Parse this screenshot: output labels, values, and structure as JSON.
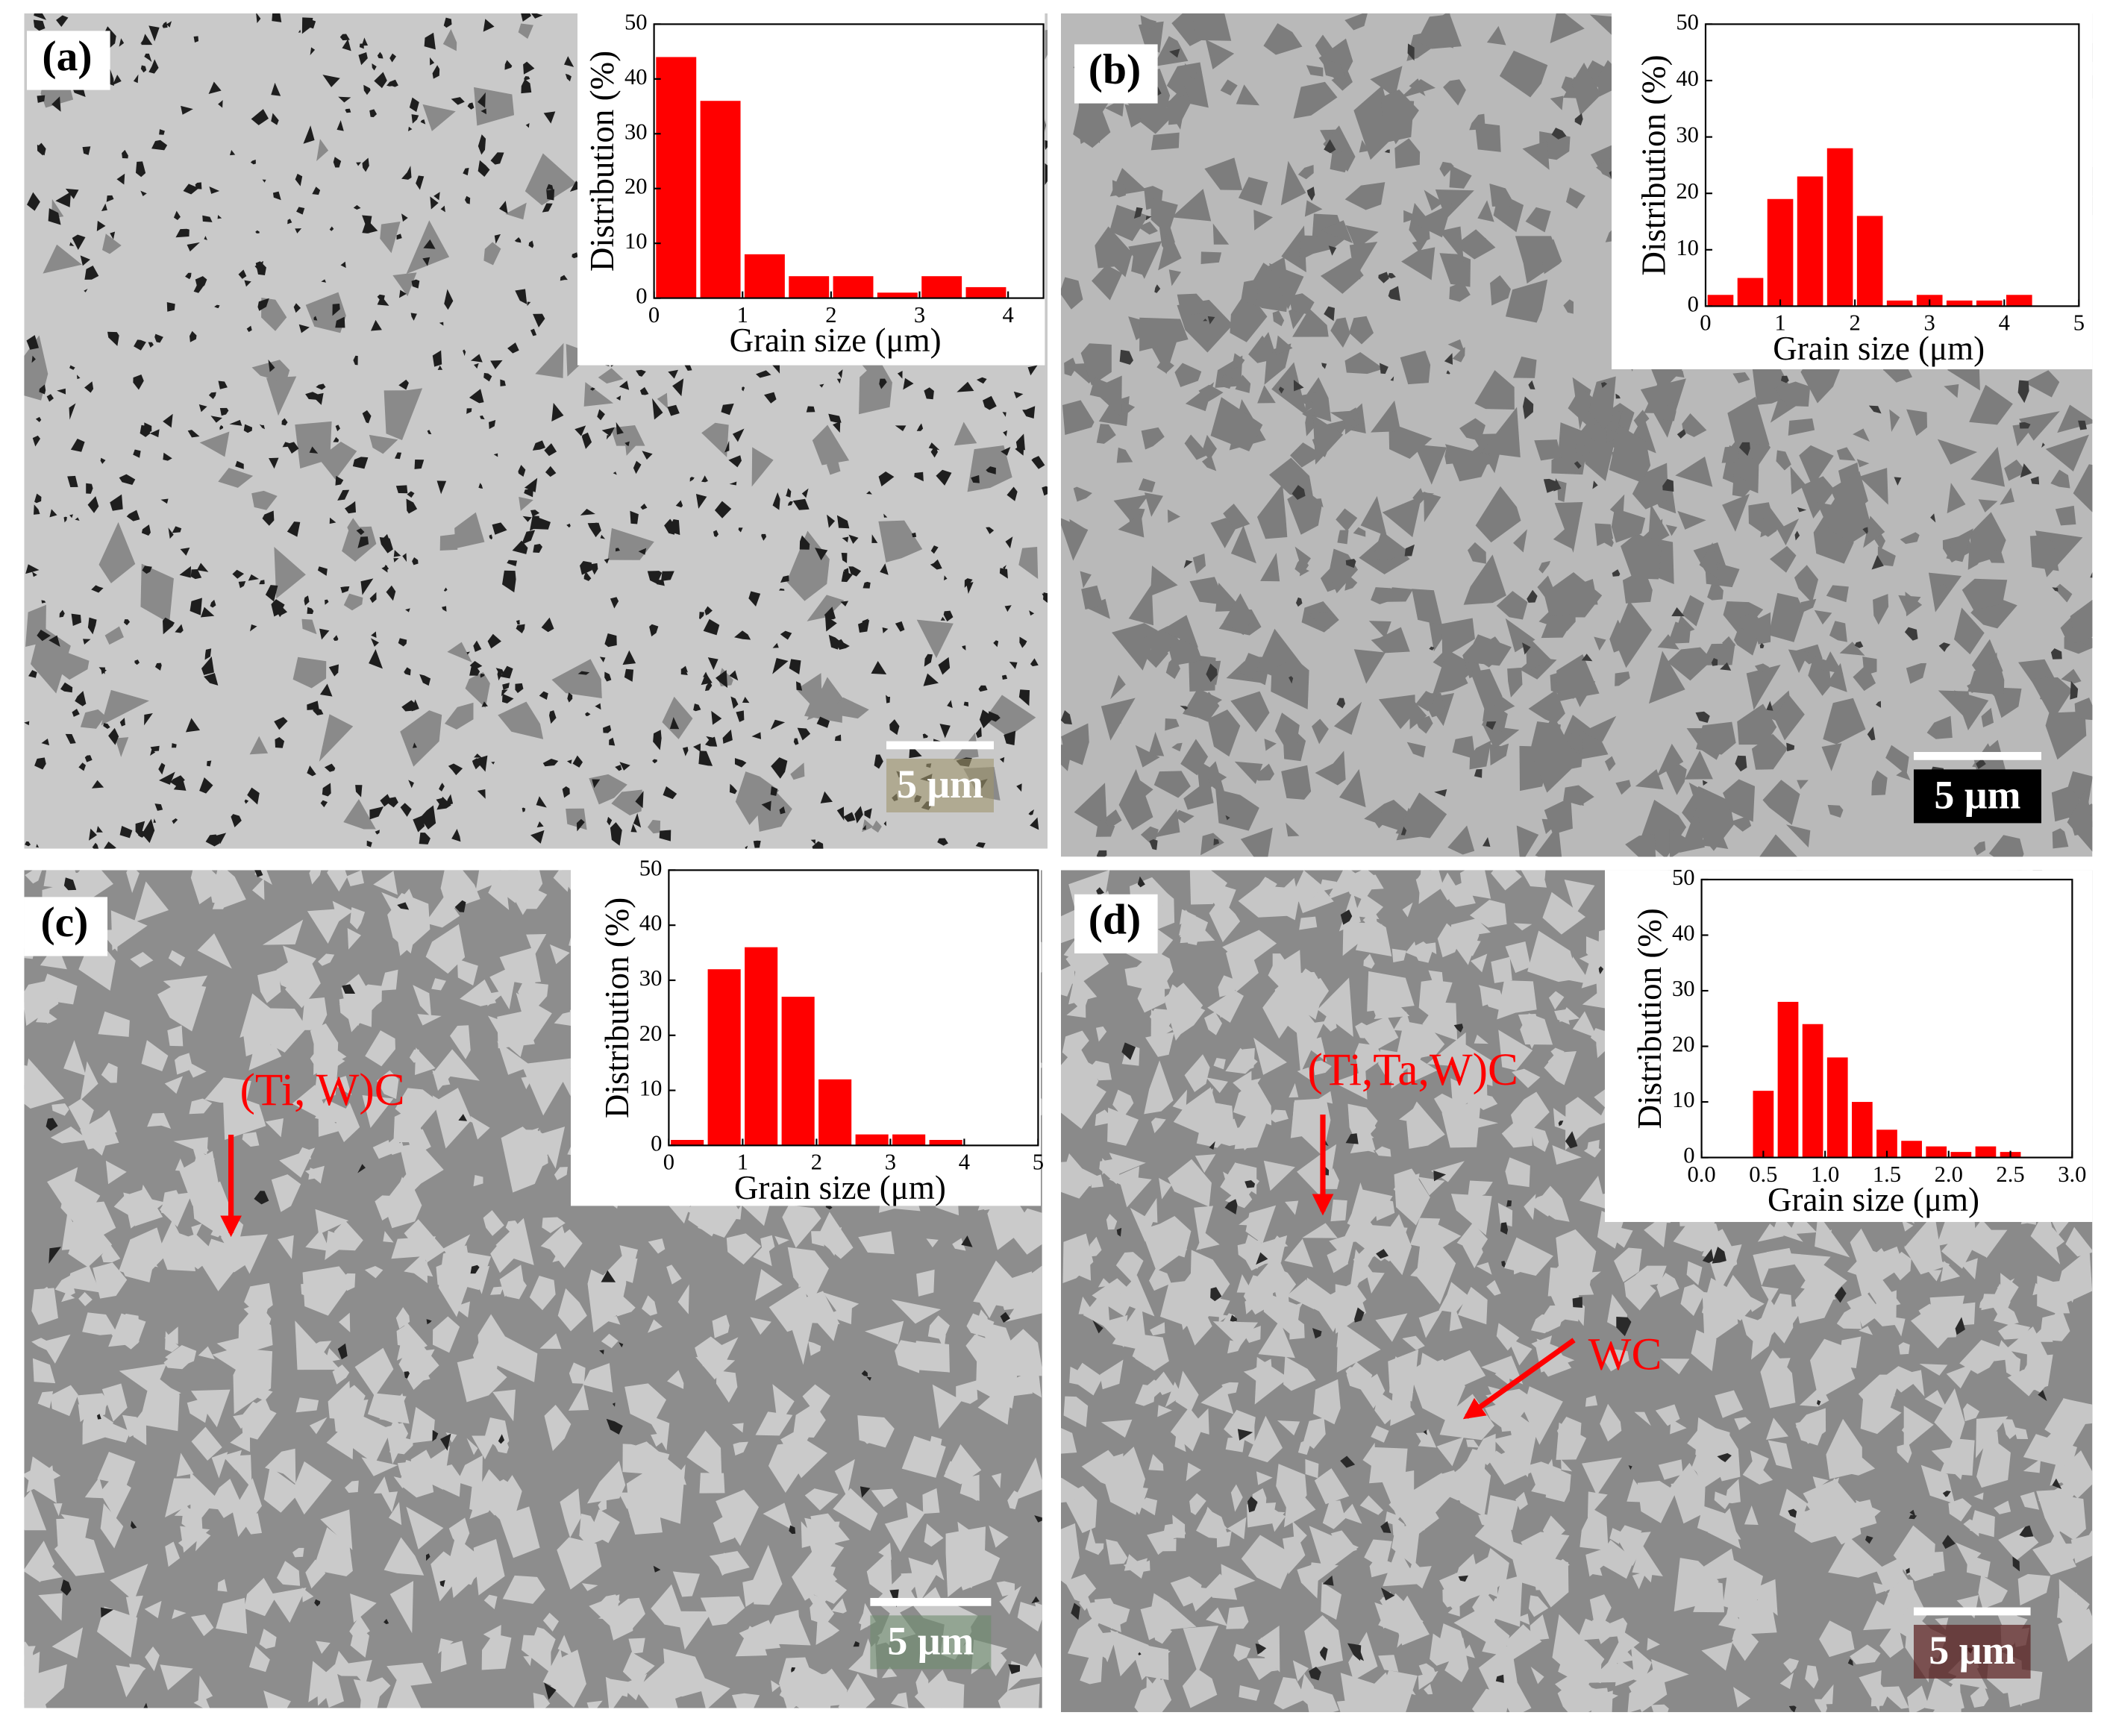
{
  "chart_data": [
    {
      "type": "histogram",
      "panel_label": "(a)",
      "scale_bar": "5 μm",
      "xlabel": "Grain size (μm)",
      "ylabel": "Distribution (%)",
      "color": "#ff0000",
      "bins": [
        0,
        0.5,
        1,
        1.5,
        2,
        2.5,
        3,
        3.5,
        4
      ],
      "values": [
        44,
        36,
        8,
        4,
        4,
        1,
        4,
        2
      ],
      "xlim": [
        0,
        4.4
      ],
      "xticks": [
        0,
        1,
        2,
        3,
        4
      ],
      "ylim": [
        0,
        50
      ],
      "yticks": [
        0,
        10,
        20,
        30,
        40,
        50
      ],
      "annotations": []
    },
    {
      "type": "histogram",
      "panel_label": "(b)",
      "scale_bar": "5 μm",
      "xlabel": "Grain size (μm)",
      "ylabel": "Distribution (%)",
      "color": "#ff0000",
      "bins": [
        0,
        0.4,
        0.8,
        1.2,
        1.6,
        2,
        2.4,
        2.8,
        3.2,
        3.6,
        4,
        4.4
      ],
      "values": [
        2,
        5,
        19,
        23,
        28,
        16,
        1,
        2,
        1,
        1,
        2
      ],
      "xlim": [
        0,
        5
      ],
      "xticks": [
        0,
        1,
        2,
        3,
        4,
        5
      ],
      "ylim": [
        0,
        50
      ],
      "yticks": [
        0,
        10,
        20,
        30,
        40,
        50
      ],
      "annotations": []
    },
    {
      "type": "histogram",
      "panel_label": "(c)",
      "scale_bar": "5 μm",
      "xlabel": "Grain size (μm)",
      "ylabel": "Distribution (%)",
      "color": "#ff0000",
      "bins": [
        0,
        0.5,
        1,
        1.5,
        2,
        2.5,
        3,
        3.5,
        4
      ],
      "values": [
        1,
        32,
        36,
        27,
        12,
        2,
        2,
        1
      ],
      "xlim": [
        0,
        5
      ],
      "xticks": [
        0,
        1,
        2,
        3,
        4,
        5
      ],
      "ylim": [
        0,
        50
      ],
      "yticks": [
        0,
        10,
        20,
        30,
        40,
        50
      ],
      "annotations": [
        "(Ti, W)C"
      ]
    },
    {
      "type": "histogram",
      "panel_label": "(d)",
      "scale_bar": "5 μm",
      "xlabel": "Grain size (μm)",
      "ylabel": "Distribution (%)",
      "color": "#ff0000",
      "bins": [
        0.4,
        0.6,
        0.8,
        1.0,
        1.2,
        1.4,
        1.6,
        1.8,
        2.0,
        2.2,
        2.4,
        2.6
      ],
      "values": [
        12,
        28,
        24,
        18,
        10,
        5,
        3,
        2,
        1,
        2,
        1
      ],
      "xlim": [
        0,
        3
      ],
      "xticks": [
        {
          "value": 0,
          "label": "0.0"
        },
        {
          "value": 0.5,
          "label": "0.5"
        },
        {
          "value": 1,
          "label": "1.0"
        },
        {
          "value": 1.5,
          "label": "1.5"
        },
        {
          "value": 2,
          "label": "2.0"
        },
        {
          "value": 2.5,
          "label": "2.5"
        },
        {
          "value": 3,
          "label": "3.0"
        }
      ],
      "ylim": [
        0,
        50
      ],
      "yticks": [
        0,
        10,
        20,
        30,
        40,
        50
      ],
      "annotations": [
        "(Ti,Ta,W)C",
        "WC"
      ]
    }
  ]
}
